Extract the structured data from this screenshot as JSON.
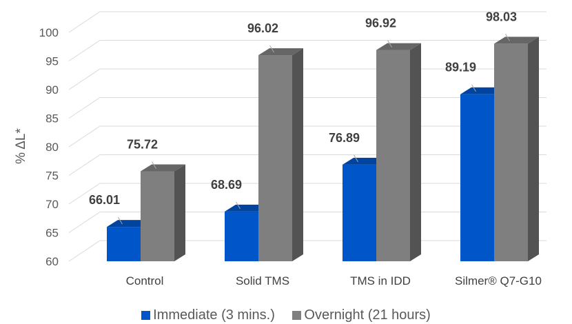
{
  "chart_data": {
    "type": "bar",
    "categories": [
      "Control",
      "Solid TMS",
      "TMS in IDD",
      "Silmer® Q7-G10"
    ],
    "series": [
      {
        "name": "Immediate (3 mins.)",
        "values": [
          66.01,
          68.69,
          76.89,
          89.19
        ],
        "color": "#0055C8"
      },
      {
        "name": "Overnight (21 hours)",
        "values": [
          75.72,
          96.02,
          96.92,
          98.03
        ],
        "color": "#7F7F7F"
      }
    ],
    "data_labels": [
      [
        "66.01",
        "68.69",
        "76.89",
        "89.19"
      ],
      [
        "75.72",
        "96.02",
        "96.92",
        "98.03"
      ]
    ],
    "ylabel": "% ΔL*",
    "ylim": [
      60,
      100
    ],
    "yticks": [
      "60",
      "65",
      "70",
      "75",
      "80",
      "85",
      "90",
      "95",
      "100"
    ],
    "grid": true,
    "legend_position": "bottom",
    "style": "3d-clustered-column"
  }
}
